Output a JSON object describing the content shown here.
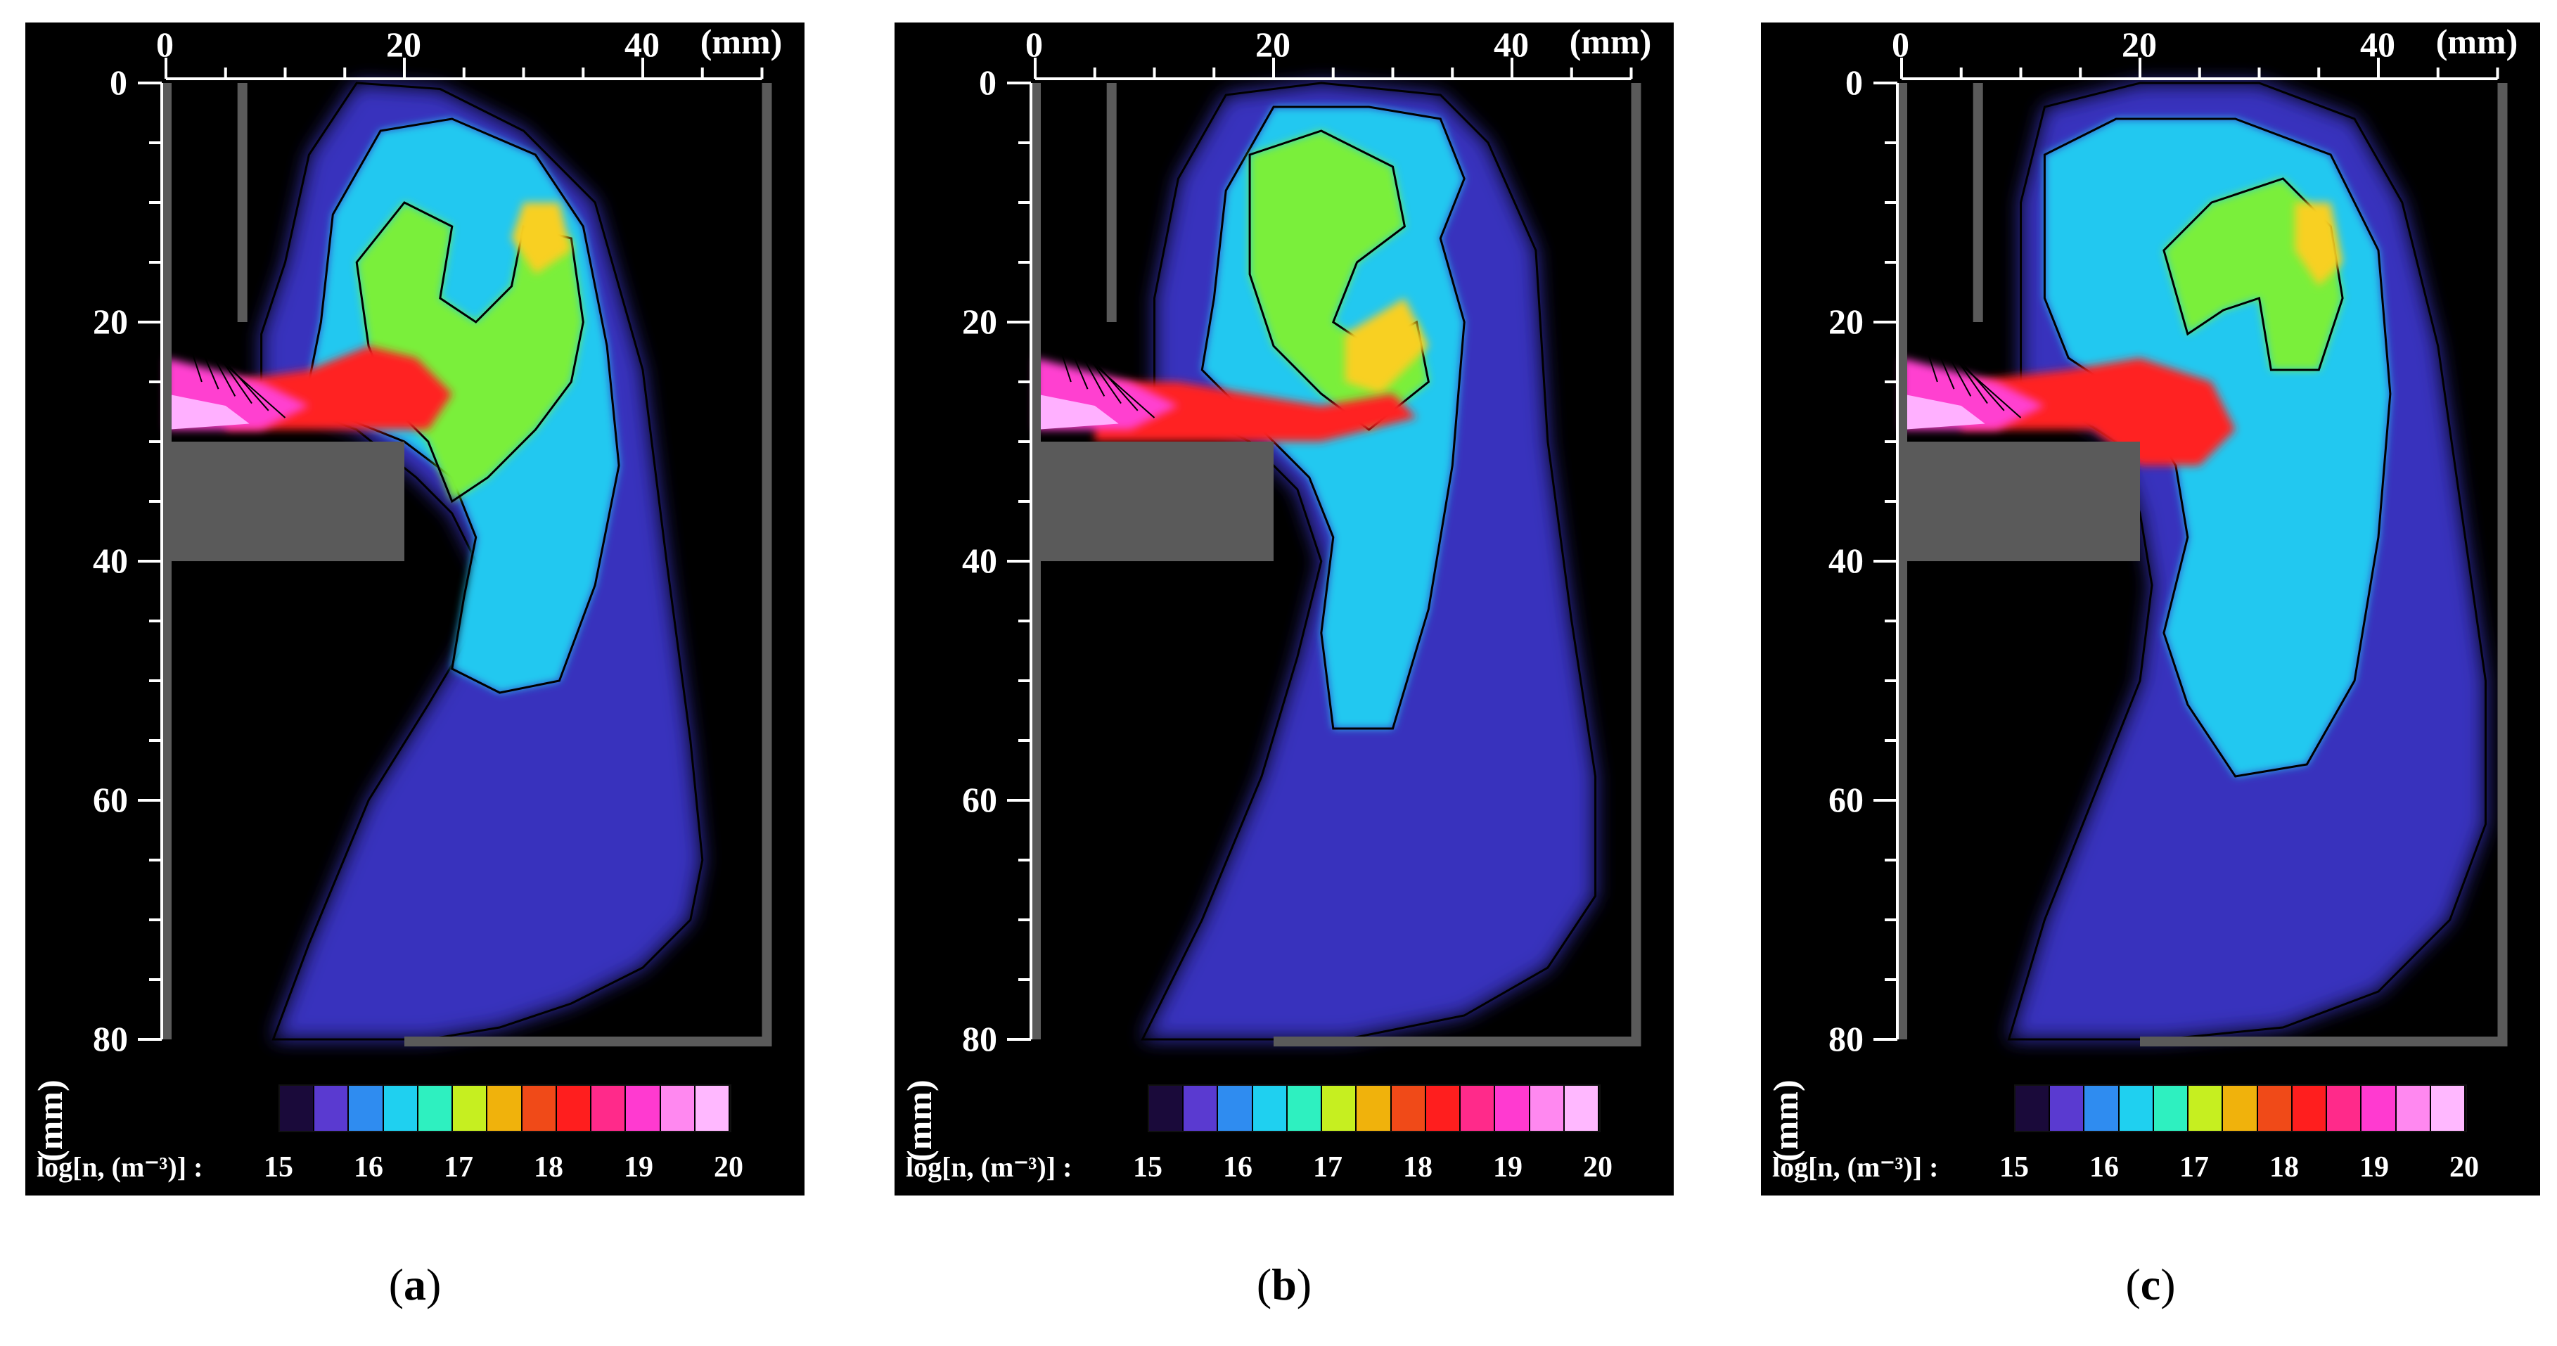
{
  "figure": {
    "panels": [
      {
        "id": "a",
        "caption_letter": "a"
      },
      {
        "id": "b",
        "caption_letter": "b"
      },
      {
        "id": "c",
        "caption_letter": "c"
      }
    ],
    "x_axis": {
      "unit": "(mm)",
      "ticks": [
        "0",
        "20",
        "40"
      ],
      "values": [
        0,
        20,
        40
      ]
    },
    "y_axis": {
      "unit": "(mm)",
      "ticks": [
        "0",
        "20",
        "40",
        "60",
        "80"
      ],
      "values": [
        0,
        20,
        40,
        60,
        80
      ]
    },
    "colorbar": {
      "title": "log[n, (m⁻³)] :",
      "ticks": [
        "15",
        "16",
        "17",
        "18",
        "19",
        "20"
      ],
      "values": [
        15,
        16,
        17,
        18,
        19,
        20
      ],
      "colors": [
        "#1a0a3a",
        "#5a3ad0",
        "#2f8cf0",
        "#1fd0f0",
        "#2ef0c0",
        "#c6ef20",
        "#f0b20c",
        "#f04a18",
        "#ff1e1e",
        "#ff2a8a",
        "#ff3ad0",
        "#ff88f0",
        "#ffb8ff"
      ]
    },
    "colors": {
      "background": "#000000",
      "wall": "#5a5a5a",
      "low": "#3a36c8",
      "mid": "#24c8f0",
      "high_green": "#7aef3a",
      "peak_yellow": "#f8d020",
      "red": "#ff2020",
      "magenta": "#ff40d0",
      "pink": "#ffb0ff"
    }
  }
}
